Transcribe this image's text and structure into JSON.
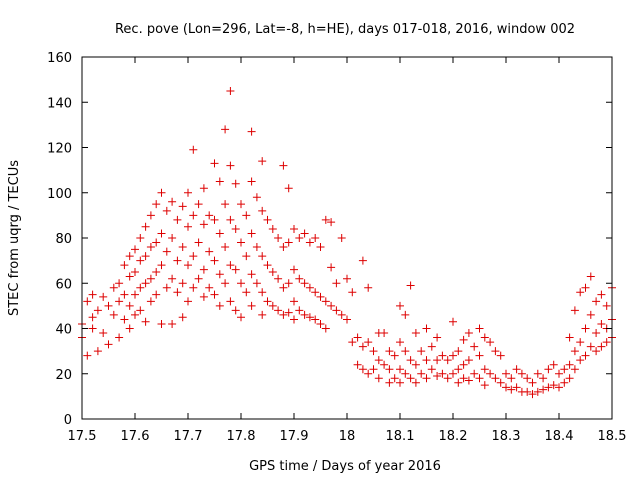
{
  "chart_data": {
    "type": "scatter",
    "title": "Rec. pove (Lon=296, Lat=-8, h=HE), days 017-018, 2016, window 002",
    "xlabel": "GPS time / Days of year 2016",
    "ylabel": "STEC from uqrg / TECUs",
    "xlim": [
      17.5,
      18.5
    ],
    "ylim": [
      0,
      160
    ],
    "xticks": [
      17.5,
      17.6,
      17.7,
      17.8,
      17.9,
      18.0,
      18.1,
      18.2,
      18.3,
      18.4,
      18.5
    ],
    "xtick_labels": [
      "17.5",
      "17.6",
      "17.7",
      "17.8",
      "17.9",
      "18",
      "18.1",
      "18.2",
      "18.3",
      "18.4",
      "18.5"
    ],
    "yticks": [
      0,
      20,
      40,
      60,
      80,
      100,
      120,
      140,
      160
    ],
    "ytick_labels": [
      "0",
      "20",
      "40",
      "60",
      "80",
      "100",
      "120",
      "140",
      "160"
    ],
    "grid": false,
    "legend": "none",
    "marker": "+",
    "color": "#dd0000",
    "points": [
      [
        17.5,
        36
      ],
      [
        17.5,
        42
      ],
      [
        17.51,
        52
      ],
      [
        17.51,
        28
      ],
      [
        17.52,
        45
      ],
      [
        17.52,
        40
      ],
      [
        17.52,
        55
      ],
      [
        17.53,
        48
      ],
      [
        17.53,
        30
      ],
      [
        17.54,
        54
      ],
      [
        17.54,
        38
      ],
      [
        17.55,
        50
      ],
      [
        17.55,
        33
      ],
      [
        17.56,
        58
      ],
      [
        17.56,
        46
      ],
      [
        17.57,
        60
      ],
      [
        17.57,
        52
      ],
      [
        17.57,
        36
      ],
      [
        17.58,
        68
      ],
      [
        17.58,
        55
      ],
      [
        17.58,
        44
      ],
      [
        17.59,
        72
      ],
      [
        17.59,
        63
      ],
      [
        17.59,
        50
      ],
      [
        17.59,
        40
      ],
      [
        17.6,
        75
      ],
      [
        17.6,
        65
      ],
      [
        17.6,
        55
      ],
      [
        17.6,
        46
      ],
      [
        17.61,
        80
      ],
      [
        17.61,
        70
      ],
      [
        17.61,
        58
      ],
      [
        17.61,
        48
      ],
      [
        17.62,
        85
      ],
      [
        17.62,
        72
      ],
      [
        17.62,
        60
      ],
      [
        17.62,
        43
      ],
      [
        17.63,
        90
      ],
      [
        17.63,
        76
      ],
      [
        17.63,
        62
      ],
      [
        17.63,
        52
      ],
      [
        17.64,
        95
      ],
      [
        17.64,
        78
      ],
      [
        17.64,
        65
      ],
      [
        17.64,
        55
      ],
      [
        17.65,
        100
      ],
      [
        17.65,
        82
      ],
      [
        17.65,
        68
      ],
      [
        17.65,
        42
      ],
      [
        17.66,
        92
      ],
      [
        17.66,
        74
      ],
      [
        17.66,
        58
      ],
      [
        17.67,
        96
      ],
      [
        17.67,
        80
      ],
      [
        17.67,
        62
      ],
      [
        17.67,
        42
      ],
      [
        17.68,
        88
      ],
      [
        17.68,
        70
      ],
      [
        17.68,
        56
      ],
      [
        17.69,
        94
      ],
      [
        17.69,
        76
      ],
      [
        17.69,
        60
      ],
      [
        17.69,
        45
      ],
      [
        17.7,
        100
      ],
      [
        17.7,
        85
      ],
      [
        17.7,
        68
      ],
      [
        17.7,
        52
      ],
      [
        17.71,
        119
      ],
      [
        17.71,
        90
      ],
      [
        17.71,
        72
      ],
      [
        17.71,
        58
      ],
      [
        17.72,
        95
      ],
      [
        17.72,
        78
      ],
      [
        17.72,
        62
      ],
      [
        17.73,
        102
      ],
      [
        17.73,
        86
      ],
      [
        17.73,
        66
      ],
      [
        17.73,
        54
      ],
      [
        17.74,
        90
      ],
      [
        17.74,
        74
      ],
      [
        17.74,
        58
      ],
      [
        17.75,
        113
      ],
      [
        17.75,
        88
      ],
      [
        17.75,
        70
      ],
      [
        17.75,
        55
      ],
      [
        17.76,
        105
      ],
      [
        17.76,
        82
      ],
      [
        17.76,
        64
      ],
      [
        17.76,
        50
      ],
      [
        17.77,
        128
      ],
      [
        17.77,
        95
      ],
      [
        17.77,
        76
      ],
      [
        17.77,
        60
      ],
      [
        17.78,
        145
      ],
      [
        17.78,
        112
      ],
      [
        17.78,
        88
      ],
      [
        17.78,
        68
      ],
      [
        17.78,
        52
      ],
      [
        17.79,
        104
      ],
      [
        17.79,
        84
      ],
      [
        17.79,
        66
      ],
      [
        17.79,
        48
      ],
      [
        17.8,
        95
      ],
      [
        17.8,
        78
      ],
      [
        17.8,
        60
      ],
      [
        17.8,
        45
      ],
      [
        17.81,
        90
      ],
      [
        17.81,
        72
      ],
      [
        17.81,
        56
      ],
      [
        17.82,
        127
      ],
      [
        17.82,
        105
      ],
      [
        17.82,
        82
      ],
      [
        17.82,
        64
      ],
      [
        17.82,
        50
      ],
      [
        17.83,
        98
      ],
      [
        17.83,
        76
      ],
      [
        17.83,
        60
      ],
      [
        17.84,
        114
      ],
      [
        17.84,
        92
      ],
      [
        17.84,
        72
      ],
      [
        17.84,
        56
      ],
      [
        17.84,
        46
      ],
      [
        17.85,
        88
      ],
      [
        17.85,
        68
      ],
      [
        17.85,
        52
      ],
      [
        17.86,
        84
      ],
      [
        17.86,
        65
      ],
      [
        17.86,
        50
      ],
      [
        17.87,
        80
      ],
      [
        17.87,
        62
      ],
      [
        17.87,
        48
      ],
      [
        17.88,
        112
      ],
      [
        17.88,
        76
      ],
      [
        17.88,
        58
      ],
      [
        17.88,
        46
      ],
      [
        17.89,
        102
      ],
      [
        17.89,
        78
      ],
      [
        17.89,
        60
      ],
      [
        17.89,
        47
      ],
      [
        17.9,
        84
      ],
      [
        17.9,
        66
      ],
      [
        17.9,
        52
      ],
      [
        17.9,
        44
      ],
      [
        17.91,
        80
      ],
      [
        17.91,
        62
      ],
      [
        17.91,
        48
      ],
      [
        17.92,
        82
      ],
      [
        17.92,
        60
      ],
      [
        17.92,
        46
      ],
      [
        17.93,
        78
      ],
      [
        17.93,
        58
      ],
      [
        17.93,
        45
      ],
      [
        17.94,
        80
      ],
      [
        17.94,
        56
      ],
      [
        17.94,
        44
      ],
      [
        17.95,
        76
      ],
      [
        17.95,
        54
      ],
      [
        17.95,
        42
      ],
      [
        17.96,
        88
      ],
      [
        17.96,
        52
      ],
      [
        17.96,
        40
      ],
      [
        17.97,
        87
      ],
      [
        17.97,
        67
      ],
      [
        17.97,
        50
      ],
      [
        17.98,
        60
      ],
      [
        17.98,
        48
      ],
      [
        17.99,
        80
      ],
      [
        17.99,
        46
      ],
      [
        18.0,
        62
      ],
      [
        18.0,
        44
      ],
      [
        18.01,
        56
      ],
      [
        18.01,
        34
      ],
      [
        18.02,
        36
      ],
      [
        18.02,
        24
      ],
      [
        18.03,
        70
      ],
      [
        18.03,
        32
      ],
      [
        18.03,
        22
      ],
      [
        18.04,
        58
      ],
      [
        18.04,
        34
      ],
      [
        18.04,
        20
      ],
      [
        18.05,
        30
      ],
      [
        18.05,
        22
      ],
      [
        18.06,
        38
      ],
      [
        18.06,
        26
      ],
      [
        18.06,
        18
      ],
      [
        18.07,
        38
      ],
      [
        18.07,
        24
      ],
      [
        18.08,
        30
      ],
      [
        18.08,
        22
      ],
      [
        18.08,
        16
      ],
      [
        18.09,
        28
      ],
      [
        18.09,
        18
      ],
      [
        18.1,
        50
      ],
      [
        18.1,
        34
      ],
      [
        18.1,
        22
      ],
      [
        18.1,
        16
      ],
      [
        18.11,
        46
      ],
      [
        18.11,
        30
      ],
      [
        18.11,
        20
      ],
      [
        18.12,
        59
      ],
      [
        18.12,
        26
      ],
      [
        18.12,
        18
      ],
      [
        18.13,
        38
      ],
      [
        18.13,
        24
      ],
      [
        18.13,
        16
      ],
      [
        18.14,
        30
      ],
      [
        18.14,
        20
      ],
      [
        18.15,
        40
      ],
      [
        18.15,
        26
      ],
      [
        18.15,
        18
      ],
      [
        18.16,
        32
      ],
      [
        18.16,
        22
      ],
      [
        18.17,
        36
      ],
      [
        18.17,
        26
      ],
      [
        18.17,
        19
      ],
      [
        18.18,
        28
      ],
      [
        18.18,
        20
      ],
      [
        18.19,
        26
      ],
      [
        18.19,
        18
      ],
      [
        18.2,
        43
      ],
      [
        18.2,
        28
      ],
      [
        18.2,
        20
      ],
      [
        18.21,
        30
      ],
      [
        18.21,
        22
      ],
      [
        18.21,
        16
      ],
      [
        18.22,
        35
      ],
      [
        18.22,
        24
      ],
      [
        18.22,
        18
      ],
      [
        18.23,
        38
      ],
      [
        18.23,
        26
      ],
      [
        18.23,
        17
      ],
      [
        18.24,
        32
      ],
      [
        18.24,
        20
      ],
      [
        18.25,
        40
      ],
      [
        18.25,
        28
      ],
      [
        18.25,
        18
      ],
      [
        18.26,
        36
      ],
      [
        18.26,
        22
      ],
      [
        18.26,
        15
      ],
      [
        18.27,
        34
      ],
      [
        18.27,
        20
      ],
      [
        18.28,
        30
      ],
      [
        18.28,
        18
      ],
      [
        18.29,
        28
      ],
      [
        18.29,
        16
      ],
      [
        18.3,
        20
      ],
      [
        18.3,
        14
      ],
      [
        18.31,
        18
      ],
      [
        18.31,
        13
      ],
      [
        18.32,
        22
      ],
      [
        18.32,
        14
      ],
      [
        18.33,
        20
      ],
      [
        18.33,
        12
      ],
      [
        18.34,
        18
      ],
      [
        18.34,
        12
      ],
      [
        18.35,
        16
      ],
      [
        18.35,
        11
      ],
      [
        18.36,
        20
      ],
      [
        18.36,
        12
      ],
      [
        18.37,
        18
      ],
      [
        18.37,
        13
      ],
      [
        18.38,
        22
      ],
      [
        18.38,
        14
      ],
      [
        18.39,
        24
      ],
      [
        18.39,
        15
      ],
      [
        18.4,
        20
      ],
      [
        18.4,
        14
      ],
      [
        18.41,
        22
      ],
      [
        18.41,
        16
      ],
      [
        18.42,
        36
      ],
      [
        18.42,
        24
      ],
      [
        18.42,
        18
      ],
      [
        18.43,
        48
      ],
      [
        18.43,
        30
      ],
      [
        18.43,
        22
      ],
      [
        18.44,
        56
      ],
      [
        18.44,
        34
      ],
      [
        18.44,
        26
      ],
      [
        18.45,
        58
      ],
      [
        18.45,
        40
      ],
      [
        18.45,
        28
      ],
      [
        18.46,
        63
      ],
      [
        18.46,
        46
      ],
      [
        18.46,
        32
      ],
      [
        18.47,
        52
      ],
      [
        18.47,
        38
      ],
      [
        18.47,
        30
      ],
      [
        18.48,
        55
      ],
      [
        18.48,
        42
      ],
      [
        18.48,
        32
      ],
      [
        18.49,
        50
      ],
      [
        18.49,
        40
      ],
      [
        18.49,
        34
      ],
      [
        18.5,
        58
      ],
      [
        18.5,
        44
      ],
      [
        18.5,
        36
      ]
    ]
  }
}
